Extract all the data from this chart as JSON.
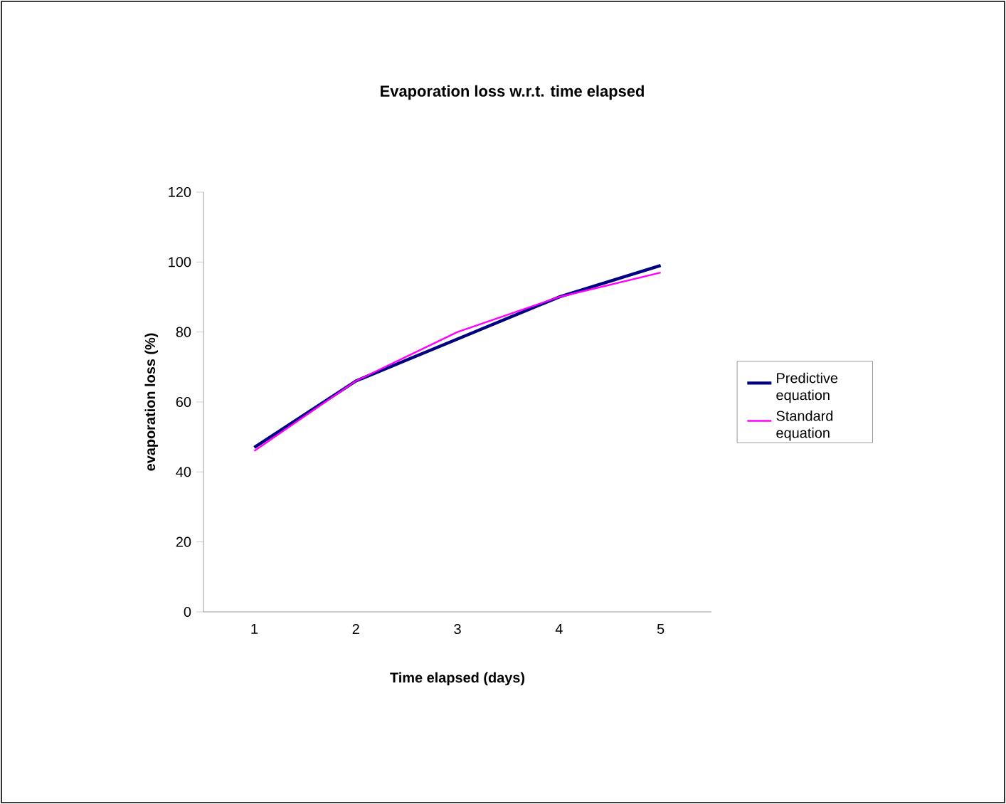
{
  "chart_data": {
    "type": "line",
    "title": "Evaporation loss w.r.t. time elapsed",
    "xlabel": "Time elapsed  (days)",
    "ylabel": "evaporation  loss (%)",
    "categories": [
      "1",
      "2",
      "3",
      "4",
      "5"
    ],
    "series": [
      {
        "name": "Predictive equation",
        "color": "#000080",
        "values": [
          47,
          66,
          78,
          90,
          99
        ]
      },
      {
        "name": "Standard equation",
        "color": "#ff00ff",
        "values": [
          46,
          66,
          80,
          90,
          97
        ]
      }
    ],
    "ylim": [
      0,
      120
    ],
    "yticks": [
      0,
      20,
      40,
      60,
      80,
      100,
      120
    ],
    "legend": "right",
    "grid": false,
    "marker": "none",
    "line_style": "solid"
  }
}
